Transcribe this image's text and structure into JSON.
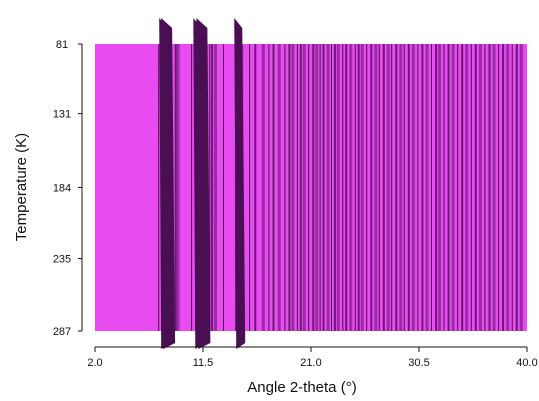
{
  "chart_data": {
    "type": "heatmap",
    "subtype": "temperature-diffraction-surface",
    "title": "",
    "xlabel": "Angle 2-theta (°)",
    "ylabel": "Temperature (K)",
    "xlim": [
      2.0,
      40.0
    ],
    "ylim": [
      81,
      287
    ],
    "x_ticks": [
      "2.0",
      "11.5",
      "21.0",
      "30.5",
      "40.0"
    ],
    "y_ticks": [
      "81",
      "131",
      "184",
      "235",
      "287"
    ],
    "y_axis_direction": "increasing-downward",
    "grid": false,
    "colors": {
      "background_band": "#e84cf0",
      "peak_dark": "#4a0f52",
      "peak_mid": "#6a1a74",
      "peak_light": "#9a2aa6"
    },
    "peaks_2theta": [
      7.6,
      7.9,
      8.1,
      8.3,
      9.1,
      9.3,
      10.5,
      10.9,
      11.2,
      12.1,
      12.3,
      12.6,
      13.3,
      14.4,
      14.9,
      15.6,
      16.1,
      16.8,
      17.3,
      17.7,
      18.2,
      18.7,
      19.1,
      19.4,
      19.8,
      20.1,
      20.4,
      20.8,
      21.2,
      21.5,
      21.8,
      22.1,
      22.5,
      22.8,
      23.1,
      23.4,
      23.8,
      24.1,
      24.5,
      24.9,
      25.2,
      25.5,
      25.9,
      26.3,
      26.7,
      27.0,
      27.4,
      27.8,
      28.1,
      28.5,
      28.9,
      29.2,
      29.6,
      30.0,
      30.4,
      30.8,
      31.2,
      31.6,
      32.0,
      32.3,
      32.7,
      33.1,
      33.5,
      33.9,
      34.3,
      34.7,
      35.1,
      35.5,
      35.9,
      36.3,
      36.7,
      37.1,
      37.5,
      37.9,
      38.3,
      38.7,
      39.1,
      39.5
    ],
    "dominant_peaks_2theta": [
      8.0,
      8.3,
      11.0,
      11.4,
      14.6
    ]
  }
}
